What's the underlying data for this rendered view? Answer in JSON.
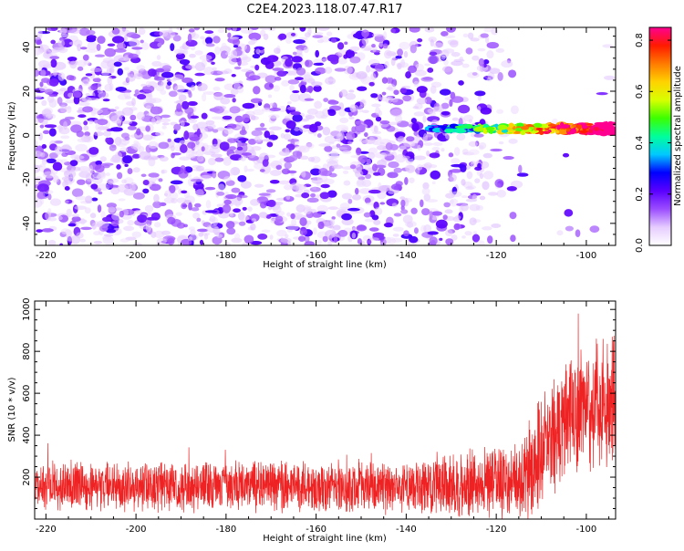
{
  "title": "C2E4.2023.118.07.47.R17",
  "chart_data": [
    {
      "type": "heatmap",
      "xlabel": "Height of straight line (km)",
      "ylabel": "Frequency (Hz)",
      "xlim": [
        -222.5,
        -93.5
      ],
      "ylim": [
        -50,
        49
      ],
      "xticks": [
        -220,
        -200,
        -180,
        -160,
        -140,
        -120,
        -100
      ],
      "yticks": [
        -40,
        -20,
        0,
        20,
        40
      ],
      "colorbar": {
        "label": "Normalized spectral amplitude",
        "range": [
          0.0,
          0.85
        ],
        "ticks": [
          0.0,
          0.2,
          0.4,
          0.6,
          0.8
        ],
        "colormap": [
          "#ffffff",
          "#e6ccff",
          "#9b4dff",
          "#5a00ff",
          "#0000ff",
          "#00c8ff",
          "#00ff9c",
          "#3cff00",
          "#d8ff00",
          "#ffd200",
          "#ff7a00",
          "#ff1a00",
          "#ff0090"
        ]
      },
      "features": {
        "noise_cloud_x": [
          -222.5,
          -93.5
        ],
        "noise_cloud_fade_x": [
          -130,
          -113
        ],
        "signal_band_frequency": 3,
        "signal_band_x": [
          -135,
          -93.5
        ]
      }
    },
    {
      "type": "line",
      "xlabel": "Height of straight line (km)",
      "ylabel": "SNR (10 * v/v)",
      "xlim": [
        -222.5,
        -93.5
      ],
      "ylim": [
        0,
        1040
      ],
      "xticks": [
        -220,
        -200,
        -180,
        -160,
        -140,
        -120,
        -100
      ],
      "yticks": [
        200,
        400,
        600,
        800,
        1000
      ],
      "series_color": "#ee2222",
      "envelope": [
        {
          "x": -222.5,
          "base": 155,
          "amp": 130
        },
        {
          "x": -140,
          "base": 155,
          "amp": 140
        },
        {
          "x": -128,
          "base": 165,
          "amp": 180
        },
        {
          "x": -116,
          "base": 180,
          "amp": 200
        },
        {
          "x": -112,
          "base": 230,
          "amp": 280
        },
        {
          "x": -108,
          "base": 380,
          "amp": 330
        },
        {
          "x": -102,
          "base": 500,
          "amp": 350
        },
        {
          "x": -98,
          "base": 560,
          "amp": 330
        },
        {
          "x": -93.5,
          "base": 540,
          "amp": 420
        }
      ]
    }
  ]
}
